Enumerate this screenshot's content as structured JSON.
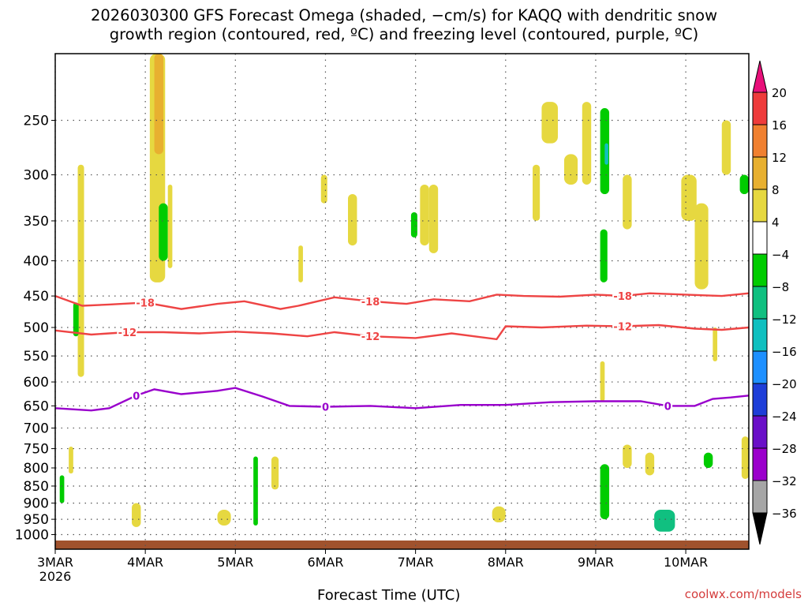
{
  "title": "2026030300 GFS Forecast Omega (shaded, −cm/s) for KAQQ with dendritic snow\ngrowth region (contoured, red, ºC) and freezing level (contoured, purple, ºC)",
  "credit": "coolwx.com/models",
  "colors": {
    "dendritic": "#ee4444",
    "freezing": "#9900cc",
    "ground": "#a0522d",
    "grid": "#555555"
  },
  "chart_data": {
    "type": "heatmap",
    "title": "2026030300 GFS Forecast Omega (shaded, −cm/s) for KAQQ with dendritic snow growth region (contoured, red, ºC) and freezing level (contoured, purple, ºC)",
    "xlabel": "Forecast Time (UTC)",
    "ylabel": "",
    "x_unit": "days since 2026-03-03 00 UTC",
    "xlim": [
      0,
      7.7
    ],
    "ylim": [
      1050,
      200
    ],
    "y_scale": "log-pressure",
    "grid": true,
    "x_ticks": [
      {
        "x": 0,
        "label": "3MAR",
        "sub": "2026"
      },
      {
        "x": 1,
        "label": "4MAR",
        "sub": ""
      },
      {
        "x": 2,
        "label": "5MAR",
        "sub": ""
      },
      {
        "x": 3,
        "label": "6MAR",
        "sub": ""
      },
      {
        "x": 4,
        "label": "7MAR",
        "sub": ""
      },
      {
        "x": 5,
        "label": "8MAR",
        "sub": ""
      },
      {
        "x": 6,
        "label": "9MAR",
        "sub": ""
      },
      {
        "x": 7,
        "label": "10MAR",
        "sub": ""
      }
    ],
    "y_ticks": [
      250,
      300,
      350,
      400,
      450,
      500,
      550,
      600,
      650,
      700,
      750,
      800,
      850,
      900,
      950,
      1000
    ],
    "colorbar": {
      "labels": [
        "20",
        "16",
        "12",
        "8",
        "4",
        "−4",
        "−8",
        "−12",
        "−16",
        "−20",
        "−24",
        "−28",
        "−32",
        "−36"
      ],
      "colors": [
        "#ee3b3b",
        "#f08030",
        "#e8b030",
        "#e6d840",
        "#ffffff",
        "#00cc00",
        "#10c080",
        "#10c0c0",
        "#1e90ff",
        "#1e3ed8",
        "#6a10c8",
        "#9b00cc",
        "#a6a6a6"
      ],
      "top_arrow": "#e8107a",
      "bottom_arrow": "#000000"
    },
    "contours": [
      {
        "label": "-18",
        "color": "#ee4444",
        "x": [
          0,
          0.3,
          0.6,
          1.0,
          1.4,
          1.8,
          2.1,
          2.5,
          2.7,
          3.1,
          3.5,
          3.9,
          4.2,
          4.6,
          4.9,
          5.2,
          5.6,
          6.0,
          6.3,
          6.6,
          7.0,
          7.4,
          7.7
        ],
        "y": [
          450,
          465,
          463,
          460,
          470,
          462,
          458,
          470,
          465,
          452,
          458,
          462,
          455,
          458,
          448,
          450,
          451,
          448,
          450,
          446,
          448,
          450,
          446
        ]
      },
      {
        "label": "-12",
        "color": "#ee4444",
        "x": [
          0,
          0.4,
          0.8,
          1.2,
          1.6,
          2.0,
          2.4,
          2.8,
          3.1,
          3.5,
          4.0,
          4.4,
          4.9,
          5.0,
          5.4,
          5.9,
          6.3,
          6.7,
          7.1,
          7.4,
          7.7
        ],
        "y": [
          505,
          512,
          508,
          508,
          510,
          507,
          510,
          515,
          508,
          515,
          518,
          510,
          520,
          498,
          500,
          497,
          498,
          496,
          502,
          504,
          500
        ]
      },
      {
        "label": "0",
        "color": "#9900cc",
        "x": [
          0,
          0.4,
          0.6,
          0.9,
          1.1,
          1.4,
          1.8,
          2.0,
          2.3,
          2.6,
          3.0,
          3.5,
          4.0,
          4.5,
          5.0,
          5.5,
          6.0,
          6.5,
          6.8,
          7.1,
          7.3,
          7.5,
          7.7
        ],
        "y": [
          655,
          660,
          655,
          628,
          615,
          625,
          618,
          612,
          630,
          650,
          652,
          650,
          655,
          648,
          648,
          642,
          640,
          640,
          650,
          650,
          635,
          632,
          628
        ]
      }
    ],
    "omega_regions": [
      {
        "x": [
          0.05,
          0.1
        ],
        "p": [
          820,
          900
        ],
        "v": -4
      },
      {
        "x": [
          0.25,
          0.32
        ],
        "p": [
          290,
          590
        ],
        "v": 4
      },
      {
        "x": [
          0.15,
          0.2
        ],
        "p": [
          745,
          815
        ],
        "v": 4
      },
      {
        "x": [
          0.2,
          0.26
        ],
        "p": [
          460,
          515
        ],
        "v": -6
      },
      {
        "x": [
          0.85,
          0.95
        ],
        "p": [
          900,
          975
        ],
        "v": 4
      },
      {
        "x": [
          1.05,
          1.22
        ],
        "p": [
          200,
          430
        ],
        "v": 6
      },
      {
        "x": [
          1.1,
          1.2
        ],
        "p": [
          200,
          280
        ],
        "v": 10
      },
      {
        "x": [
          1.15,
          1.25
        ],
        "p": [
          330,
          400
        ],
        "v": -6
      },
      {
        "x": [
          1.25,
          1.3
        ],
        "p": [
          310,
          410
        ],
        "v": 4
      },
      {
        "x": [
          1.8,
          1.95
        ],
        "p": [
          920,
          970
        ],
        "v": 4
      },
      {
        "x": [
          2.2,
          2.25
        ],
        "p": [
          770,
          970
        ],
        "v": -6
      },
      {
        "x": [
          2.4,
          2.48
        ],
        "p": [
          770,
          860
        ],
        "v": 4
      },
      {
        "x": [
          2.7,
          2.75
        ],
        "p": [
          380,
          430
        ],
        "v": 4
      },
      {
        "x": [
          2.95,
          3.02
        ],
        "p": [
          300,
          330
        ],
        "v": 4
      },
      {
        "x": [
          3.25,
          3.35
        ],
        "p": [
          320,
          380
        ],
        "v": 4
      },
      {
        "x": [
          3.95,
          4.02
        ],
        "p": [
          340,
          370
        ],
        "v": -6
      },
      {
        "x": [
          4.05,
          4.15
        ],
        "p": [
          310,
          380
        ],
        "v": 4
      },
      {
        "x": [
          4.15,
          4.25
        ],
        "p": [
          310,
          390
        ],
        "v": 4
      },
      {
        "x": [
          4.85,
          5.0
        ],
        "p": [
          910,
          960
        ],
        "v": 4
      },
      {
        "x": [
          5.3,
          5.38
        ],
        "p": [
          290,
          350
        ],
        "v": 4
      },
      {
        "x": [
          5.4,
          5.58
        ],
        "p": [
          235,
          270
        ],
        "v": 4
      },
      {
        "x": [
          5.65,
          5.8
        ],
        "p": [
          280,
          310
        ],
        "v": 4
      },
      {
        "x": [
          5.85,
          5.95
        ],
        "p": [
          235,
          310
        ],
        "v": 4
      },
      {
        "x": [
          6.05,
          6.15
        ],
        "p": [
          240,
          320
        ],
        "v": -6
      },
      {
        "x": [
          6.1,
          6.14
        ],
        "p": [
          270,
          290
        ],
        "v": -14
      },
      {
        "x": [
          6.05,
          6.13
        ],
        "p": [
          360,
          430
        ],
        "v": -6
      },
      {
        "x": [
          6.05,
          6.15
        ],
        "p": [
          790,
          950
        ],
        "v": -6
      },
      {
        "x": [
          6.05,
          6.1
        ],
        "p": [
          560,
          640
        ],
        "v": 4
      },
      {
        "x": [
          6.3,
          6.4
        ],
        "p": [
          300,
          360
        ],
        "v": 4
      },
      {
        "x": [
          6.3,
          6.4
        ],
        "p": [
          740,
          800
        ],
        "v": 4
      },
      {
        "x": [
          6.55,
          6.65
        ],
        "p": [
          760,
          820
        ],
        "v": 4
      },
      {
        "x": [
          6.65,
          6.88
        ],
        "p": [
          920,
          990
        ],
        "v": -8
      },
      {
        "x": [
          6.95,
          7.12
        ],
        "p": [
          300,
          350
        ],
        "v": 4
      },
      {
        "x": [
          7.1,
          7.25
        ],
        "p": [
          330,
          440
        ],
        "v": 4
      },
      {
        "x": [
          7.2,
          7.3
        ],
        "p": [
          760,
          800
        ],
        "v": -6
      },
      {
        "x": [
          7.3,
          7.35
        ],
        "p": [
          500,
          560
        ],
        "v": 4
      },
      {
        "x": [
          7.4,
          7.5
        ],
        "p": [
          250,
          300
        ],
        "v": 4
      },
      {
        "x": [
          7.6,
          7.7
        ],
        "p": [
          300,
          320
        ],
        "v": -6
      },
      {
        "x": [
          7.62,
          7.7
        ],
        "p": [
          720,
          830
        ],
        "v": 4
      }
    ]
  }
}
